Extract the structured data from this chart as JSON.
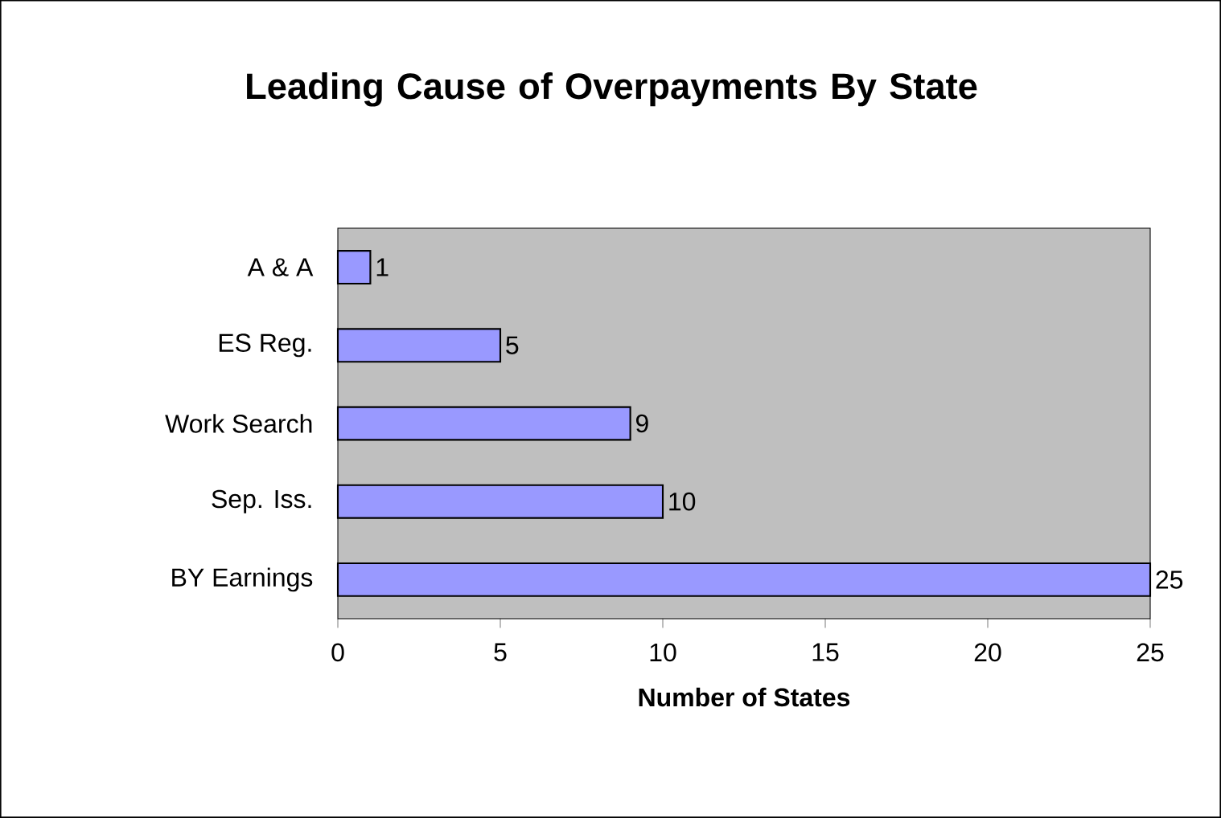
{
  "chart_data": {
    "type": "bar",
    "orientation": "horizontal",
    "title": "Leading Cause of Overpayments By State",
    "xlabel": "Number of States",
    "categories": [
      "A & A",
      "ES Reg.",
      "Work Search",
      "Sep. Iss.",
      "BY Earnings"
    ],
    "values": [
      1,
      5,
      9,
      10,
      25
    ],
    "color": "#9999ff",
    "xlim": [
      0,
      25
    ],
    "xticks": [
      0,
      5,
      10,
      15,
      20,
      25
    ],
    "data_labels": true,
    "grid": false
  }
}
